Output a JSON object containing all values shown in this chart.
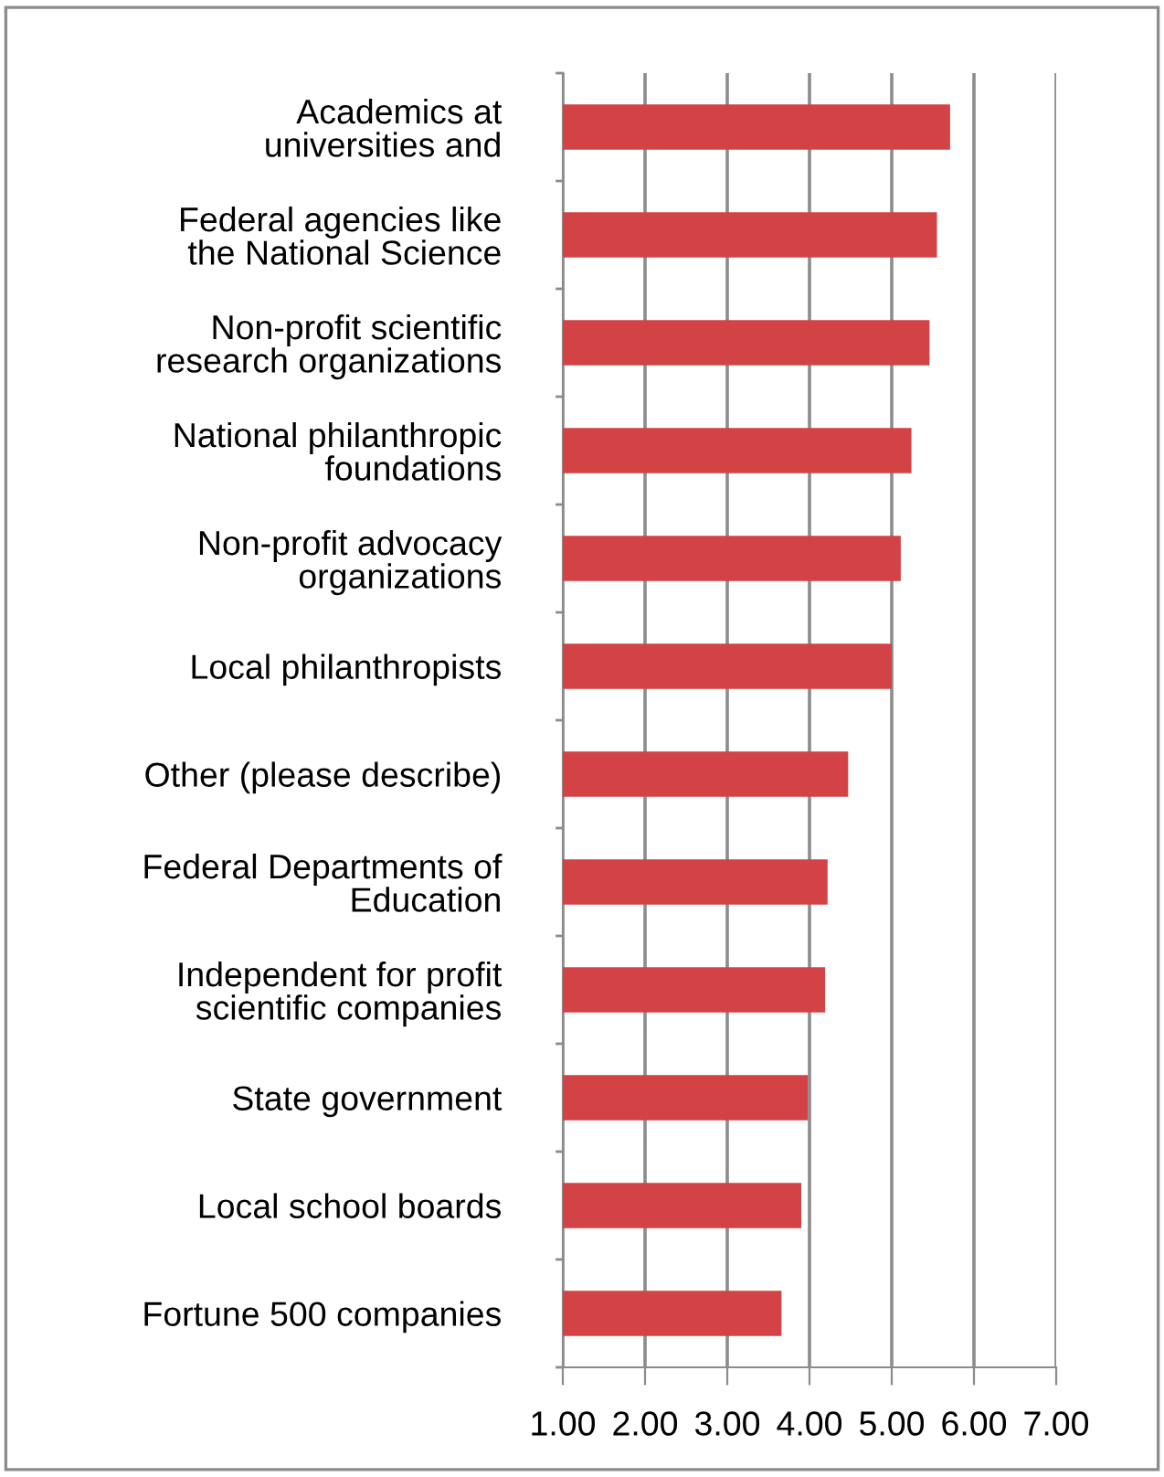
{
  "chart_data": {
    "type": "bar",
    "orientation": "horizontal",
    "categories": [
      "Academics at\nuniversities and",
      "Federal agencies like\nthe National Science",
      "Non-profit scientific\nresearch organizations",
      "National philanthropic\nfoundations",
      "Non-profit advocacy\norganizations",
      "Local philanthropists",
      "Other (please describe)",
      "Federal Departments of\nEducation",
      "Independent for profit\nscientific companies",
      "State government",
      "Local school boards",
      "Fortune 500 companies"
    ],
    "values": [
      5.71,
      5.55,
      5.46,
      5.24,
      5.11,
      5.0,
      4.47,
      4.22,
      4.19,
      3.98,
      3.9,
      3.66
    ],
    "color": "#d34345",
    "xlim": [
      1,
      7
    ],
    "xticks": [
      {
        "value": 1,
        "label": "1.00"
      },
      {
        "value": 2,
        "label": "2.00"
      },
      {
        "value": 3,
        "label": "3.00"
      },
      {
        "value": 4,
        "label": "4.00"
      },
      {
        "value": 5,
        "label": "5.00"
      },
      {
        "value": 6,
        "label": "6.00"
      },
      {
        "value": 7,
        "label": "7.00"
      }
    ],
    "grid": "x",
    "legend": false
  }
}
